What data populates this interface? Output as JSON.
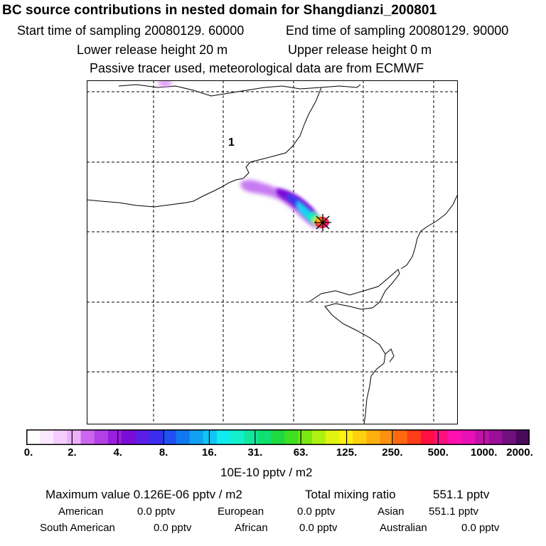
{
  "header": {
    "title": "BC  source contributions in nested domain for Shangdianzi_200801",
    "start_label": "Start time of sampling 20080129. 60000",
    "end_label": "End time of sampling 20080129. 90000",
    "lower_label": "Lower release height   20 m",
    "upper_label": "Upper release height    0 m",
    "tracer_label": "Passive tracer used, meteorological data are from ECMWF"
  },
  "map": {
    "region_marker": "1",
    "station_marker": "receptor-star"
  },
  "colorbar": {
    "colors": [
      "#ffffff",
      "#fbe8ff",
      "#f4ccfd",
      "#eeb0fb",
      "#cc66ee",
      "#b340e6",
      "#9a1ee0",
      "#7b0cd6",
      "#5b1ee6",
      "#3c2cf0",
      "#2050f2",
      "#1078f0",
      "#10a0f0",
      "#10c4f4",
      "#10ecf0",
      "#14f0cc",
      "#10e8a0",
      "#10e070",
      "#20d840",
      "#40e020",
      "#78e810",
      "#b0f010",
      "#e0f410",
      "#fff010",
      "#ffd010",
      "#ffb010",
      "#ff9010",
      "#ff6810",
      "#ff3c18",
      "#ff1040",
      "#ff1080",
      "#ff10b0",
      "#e810b8",
      "#c010a8",
      "#9a1098",
      "#70107c",
      "#4a0a5c"
    ],
    "ticks": [
      "0.",
      "2.",
      "4.",
      "8.",
      "16.",
      "31.",
      "63.",
      "125.",
      "250.",
      "500.",
      "1000.",
      "2000."
    ],
    "unit": "10E-10 pptv / m2"
  },
  "stats": {
    "max_label": "Maximum value  0.126E-06 pptv / m2",
    "total_label": "Total mixing ratio",
    "total_value": "551.1 pptv",
    "rows": [
      [
        {
          "label": "American",
          "value": "0.0 pptv"
        },
        {
          "label": "European",
          "value": "0.0 pptv"
        },
        {
          "label": "Asian",
          "value": "551.1 pptv"
        }
      ],
      [
        {
          "label": "South American",
          "value": "0.0 pptv"
        },
        {
          "label": "African",
          "value": "0.0 pptv"
        },
        {
          "label": "Australian",
          "value": "0.0 pptv"
        }
      ]
    ]
  }
}
